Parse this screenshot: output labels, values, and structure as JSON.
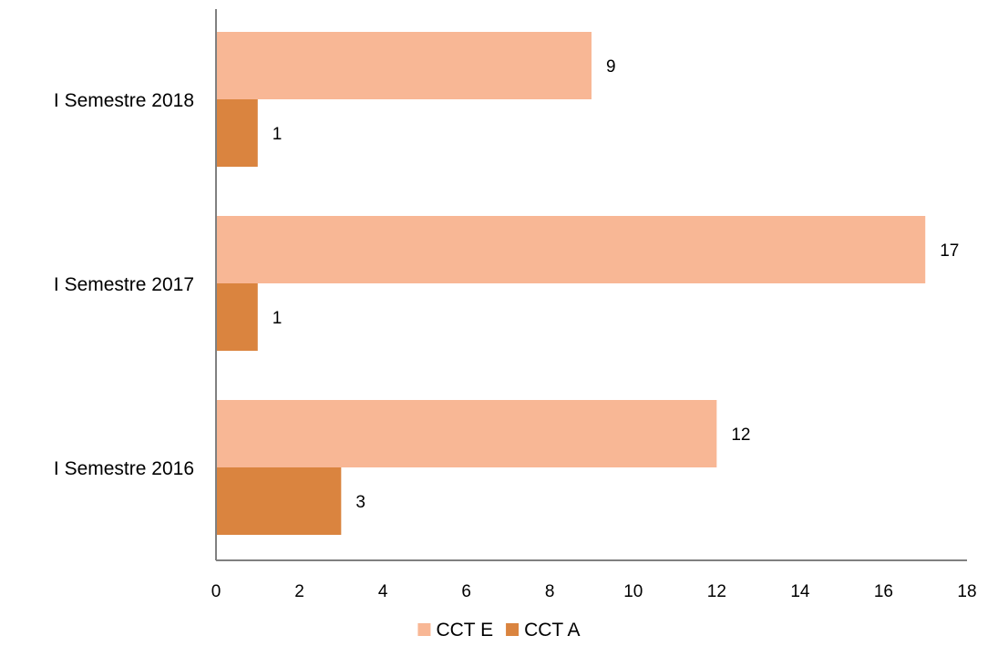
{
  "chart_data": {
    "type": "bar",
    "orientation": "horizontal",
    "categories": [
      "I Semestre 2018",
      "I Semestre 2017",
      "I Semestre 2016"
    ],
    "series": [
      {
        "name": "CCT E",
        "values": [
          9,
          17,
          12
        ],
        "color": "#F8B795"
      },
      {
        "name": "CCT A",
        "values": [
          1,
          1,
          3
        ],
        "color": "#DA843F"
      }
    ],
    "xlim": [
      0,
      18
    ],
    "xticks": [
      "0",
      "2",
      "4",
      "6",
      "8",
      "10",
      "12",
      "14",
      "16",
      "18"
    ],
    "title": "",
    "xlabel": "",
    "ylabel": "",
    "grid": false,
    "legend_position": "bottom",
    "data_labels": true,
    "axis_color": "#808080"
  }
}
